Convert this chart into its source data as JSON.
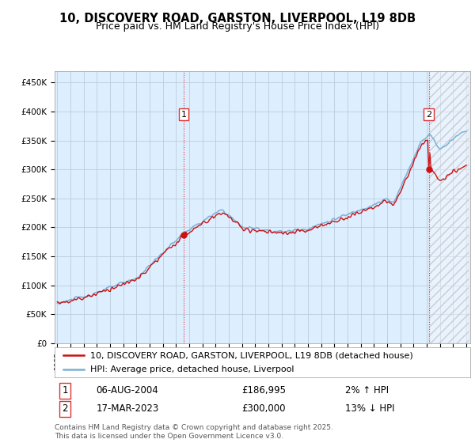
{
  "title": "10, DISCOVERY ROAD, GARSTON, LIVERPOOL, L19 8DB",
  "subtitle": "Price paid vs. HM Land Registry's House Price Index (HPI)",
  "ylim": [
    0,
    470000
  ],
  "yticks": [
    0,
    50000,
    100000,
    150000,
    200000,
    250000,
    300000,
    350000,
    400000,
    450000
  ],
  "ytick_labels": [
    "£0",
    "£50K",
    "£100K",
    "£150K",
    "£200K",
    "£250K",
    "£300K",
    "£350K",
    "£400K",
    "£450K"
  ],
  "hpi_color": "#7ab0d4",
  "price_color": "#cc1111",
  "vline_color": "#dd3333",
  "background_color": "#ffffff",
  "chart_bg": "#ddeeff",
  "grid_color": "#bbccdd",
  "sale1_x": 2004.583,
  "sale1_price": 186995,
  "sale2_x": 2023.167,
  "sale2_price": 300000,
  "legend_line1": "10, DISCOVERY ROAD, GARSTON, LIVERPOOL, L19 8DB (detached house)",
  "legend_line2": "HPI: Average price, detached house, Liverpool",
  "sale1_date": "06-AUG-2004",
  "sale1_pct": "2% ↑ HPI",
  "sale2_date": "17-MAR-2023",
  "sale2_pct": "13% ↓ HPI",
  "footer": "Contains HM Land Registry data © Crown copyright and database right 2025.\nThis data is licensed under the Open Government Licence v3.0.",
  "title_fontsize": 10.5,
  "subtitle_fontsize": 9,
  "axis_fontsize": 7.5,
  "legend_fontsize": 8
}
